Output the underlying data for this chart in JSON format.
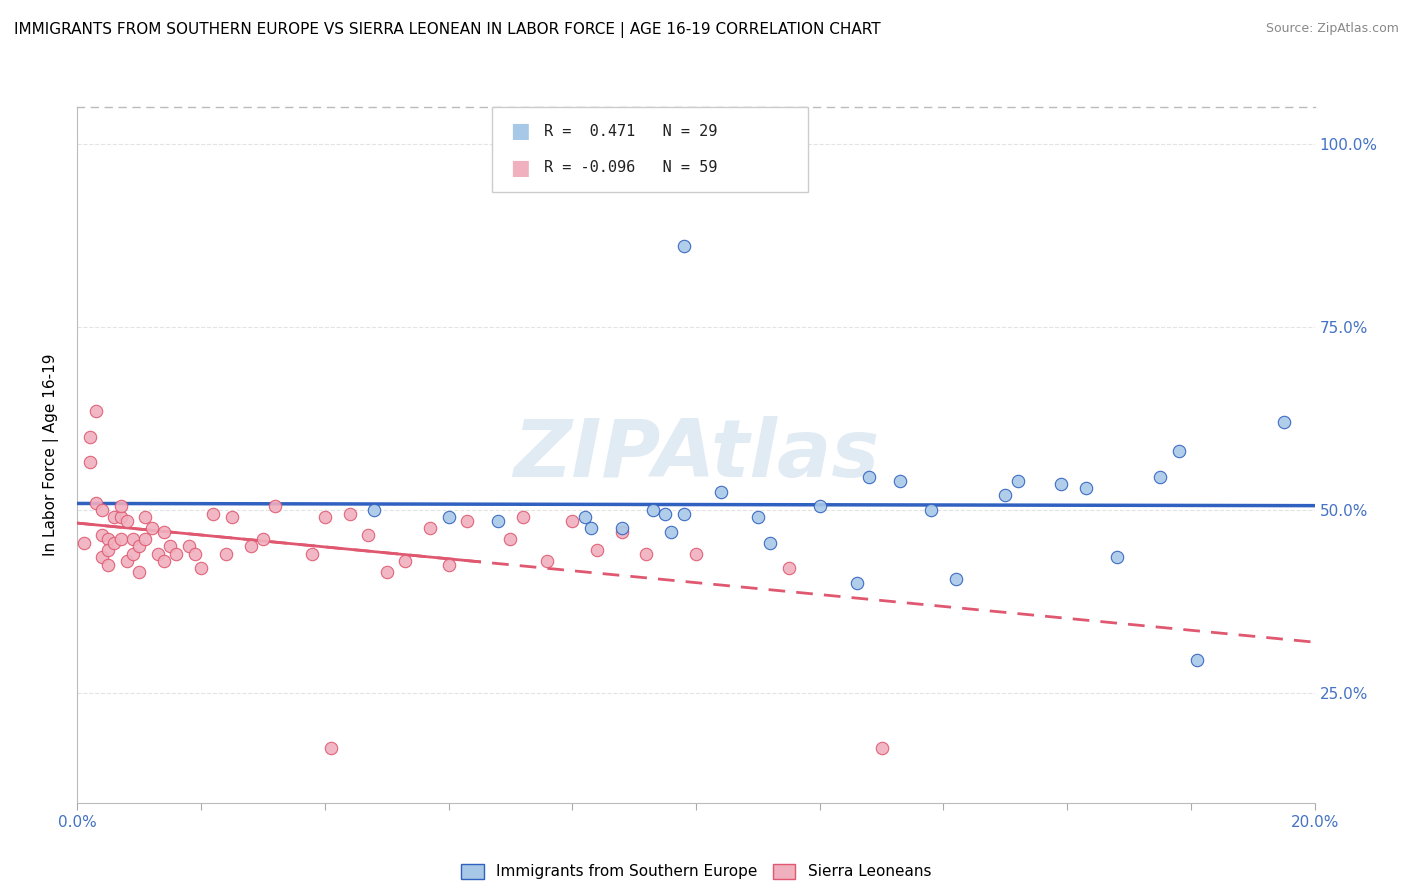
{
  "title": "IMMIGRANTS FROM SOUTHERN EUROPE VS SIERRA LEONEAN IN LABOR FORCE | AGE 16-19 CORRELATION CHART",
  "source": "Source: ZipAtlas.com",
  "ylabel": "In Labor Force | Age 16-19",
  "ytick_labels": [
    "25.0%",
    "50.0%",
    "75.0%",
    "100.0%"
  ],
  "ytick_values": [
    0.25,
    0.5,
    0.75,
    1.0
  ],
  "xmin": 0.0,
  "xmax": 0.2,
  "ymin": 0.1,
  "ymax": 1.05,
  "legend_r1": "R =  0.471",
  "legend_n1": "N = 29",
  "legend_r2": "R = -0.096",
  "legend_n2": "N = 59",
  "color_blue": "#a8c8e8",
  "color_pink": "#f0b0be",
  "color_blue_line": "#3060c0",
  "color_pink_line": "#e05870",
  "legend_label1": "Immigrants from Southern Europe",
  "legend_label2": "Sierra Leoneans",
  "blue_x": [
    0.048,
    0.06,
    0.068,
    0.082,
    0.083,
    0.088,
    0.093,
    0.095,
    0.096,
    0.098,
    0.104,
    0.11,
    0.112,
    0.12,
    0.126,
    0.128,
    0.133,
    0.138,
    0.142,
    0.15,
    0.152,
    0.098,
    0.159,
    0.163,
    0.168,
    0.175,
    0.178,
    0.181,
    0.195
  ],
  "blue_y": [
    0.5,
    0.49,
    0.485,
    0.49,
    0.475,
    0.475,
    0.5,
    0.495,
    0.47,
    0.495,
    0.525,
    0.49,
    0.455,
    0.505,
    0.4,
    0.545,
    0.54,
    0.5,
    0.405,
    0.52,
    0.54,
    0.86,
    0.535,
    0.53,
    0.435,
    0.545,
    0.58,
    0.295,
    0.62
  ],
  "pink_x": [
    0.001,
    0.002,
    0.002,
    0.003,
    0.003,
    0.004,
    0.004,
    0.004,
    0.005,
    0.005,
    0.005,
    0.006,
    0.006,
    0.007,
    0.007,
    0.007,
    0.008,
    0.008,
    0.009,
    0.009,
    0.01,
    0.01,
    0.011,
    0.011,
    0.012,
    0.013,
    0.014,
    0.014,
    0.015,
    0.016,
    0.018,
    0.019,
    0.02,
    0.022,
    0.024,
    0.025,
    0.028,
    0.03,
    0.032,
    0.038,
    0.04,
    0.041,
    0.044,
    0.047,
    0.05,
    0.053,
    0.057,
    0.06,
    0.063,
    0.07,
    0.072,
    0.076,
    0.08,
    0.084,
    0.088,
    0.092,
    0.1,
    0.115,
    0.13
  ],
  "pink_y": [
    0.455,
    0.6,
    0.565,
    0.635,
    0.51,
    0.435,
    0.5,
    0.465,
    0.425,
    0.46,
    0.445,
    0.455,
    0.49,
    0.49,
    0.505,
    0.46,
    0.485,
    0.43,
    0.44,
    0.46,
    0.415,
    0.45,
    0.46,
    0.49,
    0.475,
    0.44,
    0.43,
    0.47,
    0.45,
    0.44,
    0.45,
    0.44,
    0.42,
    0.495,
    0.44,
    0.49,
    0.45,
    0.46,
    0.505,
    0.44,
    0.49,
    0.175,
    0.495,
    0.465,
    0.415,
    0.43,
    0.475,
    0.425,
    0.485,
    0.46,
    0.49,
    0.43,
    0.485,
    0.445,
    0.47,
    0.44,
    0.44,
    0.42,
    0.175
  ],
  "background_color": "#ffffff",
  "grid_color": "#dddddd",
  "watermark_color": "#c5d8ea",
  "watermark_alpha": 0.5
}
